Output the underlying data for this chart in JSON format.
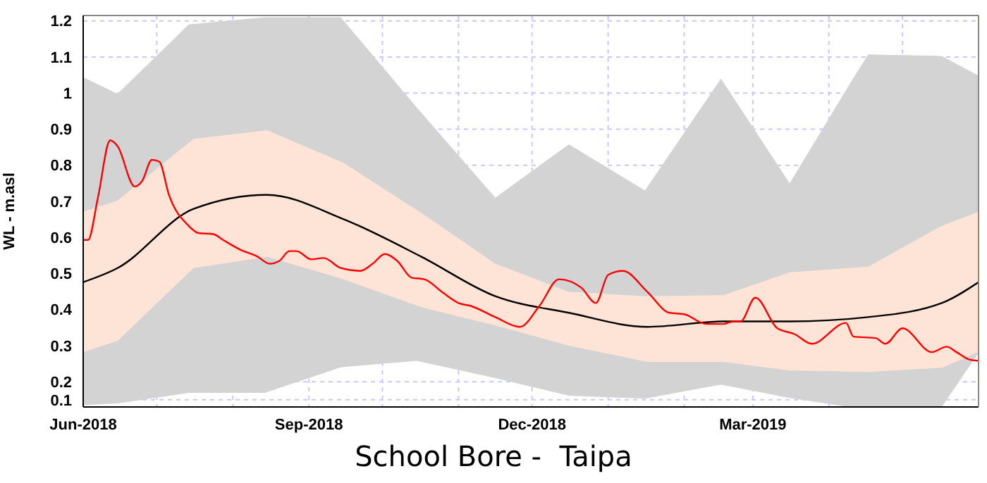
{
  "chart_data": {
    "type": "line",
    "title": "School Bore -  Taipa",
    "ylabel": "WL - m.asl",
    "xlim": [
      "2018-06-01",
      "2019-06-01"
    ],
    "xticks": [
      {
        "value": "2018-06-01",
        "label": "Jun-2018"
      },
      {
        "value": "2018-07-01",
        "label": null
      },
      {
        "value": "2018-08-01",
        "label": null
      },
      {
        "value": "2018-09-01",
        "label": "Sep-2018"
      },
      {
        "value": "2018-10-01",
        "label": null
      },
      {
        "value": "2018-11-01",
        "label": null
      },
      {
        "value": "2018-12-01",
        "label": "Dec-2018"
      },
      {
        "value": "2019-01-01",
        "label": null
      },
      {
        "value": "2019-02-01",
        "label": null
      },
      {
        "value": "2019-03-01",
        "label": "Mar-2019"
      },
      {
        "value": "2019-04-01",
        "label": null
      },
      {
        "value": "2019-05-01",
        "label": null
      }
    ],
    "ylim": [
      0.13,
      1.215
    ],
    "yticks": [
      {
        "value": 0.15,
        "label": "0.1"
      },
      0.2,
      0.3,
      0.4,
      0.5,
      0.6,
      0.7,
      0.8,
      0.9,
      1.0,
      1.1,
      1.2
    ],
    "grid": true,
    "marker": "none",
    "line_style": "solid",
    "series": [
      {
        "type": "area",
        "color": "#d3d3d3",
        "x": [
          "2018-06-01",
          "2018-06-15",
          "2018-07-14",
          "2018-08-14",
          "2018-09-14",
          "2018-10-15",
          "2018-11-16",
          "2018-12-16",
          "2019-01-16",
          "2019-02-16",
          "2019-03-16",
          "2019-04-09",
          "2019-04-17",
          "2019-05-17",
          "2019-06-01"
        ],
        "lower": [
          0.135,
          0.14,
          0.169,
          0.169,
          0.24,
          0.258,
          0.21,
          0.161,
          0.153,
          0.192,
          0.155,
          0.13,
          0.13,
          0.13,
          0.28
        ],
        "values": [
          null,
          null,
          null,
          null,
          null,
          null,
          null,
          null,
          null,
          null,
          null,
          null,
          null,
          null,
          null
        ],
        "upper": [
          1.044,
          0.998,
          1.19,
          1.21,
          1.21,
          0.96,
          0.71,
          0.858,
          0.73,
          1.04,
          0.75,
          1.02,
          1.107,
          1.103,
          1.048
        ]
      },
      {
        "type": "area",
        "color": "#fde4d6",
        "x": [
          "2018-06-01",
          "2018-06-15",
          "2018-07-16",
          "2018-08-15",
          "2018-09-15",
          "2018-10-17",
          "2018-11-16",
          "2018-12-16",
          "2019-01-17",
          "2019-02-17",
          "2019-03-16",
          "2019-04-17",
          "2019-05-17",
          "2019-06-01"
        ],
        "lower": [
          0.282,
          0.313,
          0.515,
          0.546,
          0.484,
          0.406,
          0.356,
          0.3,
          0.255,
          0.255,
          0.231,
          0.227,
          0.239,
          0.282
        ],
        "values": [
          null,
          null,
          null,
          null,
          null,
          null,
          null,
          null,
          null,
          null,
          null,
          null,
          null,
          null
        ],
        "upper": [
          0.671,
          0.702,
          0.873,
          0.897,
          0.807,
          0.667,
          0.527,
          0.449,
          0.437,
          0.44,
          0.503,
          0.519,
          0.632,
          0.671
        ]
      },
      {
        "color": "#000000",
        "x": [
          "2018-06-01",
          "2018-06-15",
          "2018-07-16",
          "2018-08-15",
          "2018-09-15",
          "2018-10-17",
          "2018-11-16",
          "2018-12-16",
          "2019-01-17",
          "2019-02-17",
          "2019-03-16",
          "2019-04-17",
          "2019-05-17",
          "2019-06-01"
        ],
        "values": [
          0.476,
          0.515,
          0.679,
          0.718,
          0.651,
          0.546,
          0.437,
          0.391,
          0.352,
          0.367,
          0.367,
          0.379,
          0.418,
          0.476
        ]
      },
      {
        "color": "#ff0000",
        "x": [
          "2018-06-01",
          "2018-06-03",
          "2018-06-07",
          "2018-06-12",
          "2018-06-15",
          "2018-06-22",
          "2018-06-25",
          "2018-06-29",
          "2018-07-02",
          "2018-07-06",
          "2018-07-14",
          "2018-07-18",
          "2018-07-24",
          "2018-07-28",
          "2018-08-04",
          "2018-08-11",
          "2018-08-16",
          "2018-08-20",
          "2018-08-24",
          "2018-08-27",
          "2018-09-02",
          "2018-09-07",
          "2018-09-14",
          "2018-09-22",
          "2018-09-27",
          "2018-10-02",
          "2018-10-07",
          "2018-10-13",
          "2018-10-18",
          "2018-10-26",
          "2018-11-01",
          "2018-11-06",
          "2018-11-16",
          "2018-11-26",
          "2018-12-04",
          "2018-12-12",
          "2018-12-21",
          "2018-12-27",
          "2019-01-01",
          "2019-01-07",
          "2019-01-17",
          "2019-01-26",
          "2019-02-01",
          "2019-02-10",
          "2019-02-17",
          "2019-02-21",
          "2019-02-24",
          "2019-03-02",
          "2019-03-11",
          "2019-03-18",
          "2019-03-25",
          "2019-04-08",
          "2019-04-11",
          "2019-04-20",
          "2019-04-24",
          "2019-05-01",
          "2019-05-13",
          "2019-05-19",
          "2019-05-23",
          "2019-05-28",
          "2019-06-01"
        ],
        "values": [
          0.593,
          0.593,
          0.71,
          0.869,
          0.853,
          0.741,
          0.756,
          0.815,
          0.81,
          0.717,
          0.632,
          0.612,
          0.609,
          0.593,
          0.566,
          0.547,
          0.527,
          0.535,
          0.562,
          0.562,
          0.539,
          0.543,
          0.515,
          0.507,
          0.527,
          0.554,
          0.535,
          0.488,
          0.484,
          0.445,
          0.418,
          0.41,
          0.379,
          0.352,
          0.41,
          0.484,
          0.461,
          0.418,
          0.496,
          0.507,
          0.449,
          0.391,
          0.387,
          0.36,
          0.36,
          0.367,
          0.367,
          0.433,
          0.348,
          0.332,
          0.305,
          0.363,
          0.325,
          0.321,
          0.305,
          0.348,
          0.282,
          0.297,
          0.282,
          0.262,
          0.258
        ]
      }
    ]
  }
}
